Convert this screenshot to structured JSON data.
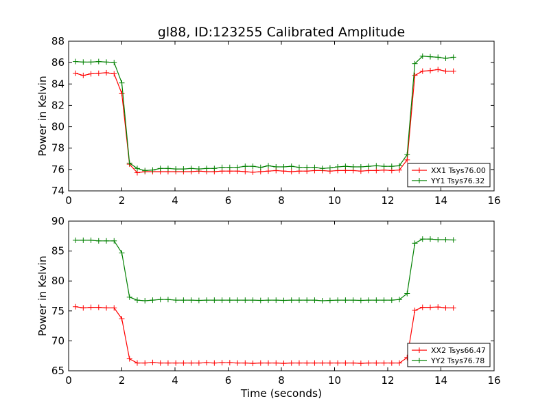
{
  "figure_title": "gl88, ID:123255 Calibrated Amplitude",
  "chart_data": [
    {
      "type": "line",
      "title": "gl88, ID:123255 Calibrated Amplitude",
      "xlabel": "",
      "ylabel": "Power in Kelvin",
      "xlim": [
        0,
        16
      ],
      "ylim": [
        74,
        88
      ],
      "xticks": [
        "0",
        "2",
        "4",
        "6",
        "8",
        "10",
        "12",
        "14",
        "16"
      ],
      "yticks": [
        "74",
        "76",
        "78",
        "80",
        "82",
        "84",
        "86",
        "88"
      ],
      "grid": false,
      "legend_position": "lower-right",
      "series": [
        {
          "name": "XX1 Tsys76.00",
          "color": "#ff0000",
          "x": [
            0.26,
            0.55,
            0.84,
            1.13,
            1.42,
            1.71,
            2.0,
            2.29,
            2.58,
            2.87,
            3.16,
            3.45,
            3.74,
            4.03,
            4.32,
            4.61,
            4.9,
            5.19,
            5.48,
            5.77,
            6.06,
            6.35,
            6.64,
            6.93,
            7.22,
            7.51,
            7.8,
            8.09,
            8.38,
            8.67,
            8.96,
            9.25,
            9.54,
            9.83,
            10.12,
            10.41,
            10.7,
            10.99,
            11.28,
            11.57,
            11.86,
            12.15,
            12.44,
            12.73,
            13.02,
            13.31,
            13.6,
            13.89,
            14.18,
            14.47
          ],
          "y": [
            85.0,
            84.8,
            84.95,
            85.0,
            85.05,
            84.95,
            83.1,
            76.5,
            75.7,
            75.8,
            75.8,
            75.8,
            75.8,
            75.8,
            75.8,
            75.8,
            75.85,
            75.8,
            75.8,
            75.85,
            75.85,
            75.85,
            75.8,
            75.75,
            75.8,
            75.85,
            75.9,
            75.85,
            75.8,
            75.85,
            75.85,
            75.9,
            75.9,
            75.85,
            75.9,
            75.9,
            75.9,
            75.85,
            75.9,
            75.9,
            75.95,
            75.9,
            75.95,
            76.9,
            84.8,
            85.2,
            85.25,
            85.35,
            85.2,
            85.2
          ]
        },
        {
          "name": "YY1 Tsys76.32",
          "color": "#008000",
          "x": [
            0.26,
            0.55,
            0.84,
            1.13,
            1.42,
            1.71,
            2.0,
            2.29,
            2.58,
            2.87,
            3.16,
            3.45,
            3.74,
            4.03,
            4.32,
            4.61,
            4.9,
            5.19,
            5.48,
            5.77,
            6.06,
            6.35,
            6.64,
            6.93,
            7.22,
            7.51,
            7.8,
            8.09,
            8.38,
            8.67,
            8.96,
            9.25,
            9.54,
            9.83,
            10.12,
            10.41,
            10.7,
            10.99,
            11.28,
            11.57,
            11.86,
            12.15,
            12.44,
            12.73,
            13.02,
            13.31,
            13.6,
            13.89,
            14.18,
            14.47
          ],
          "y": [
            86.1,
            86.05,
            86.05,
            86.1,
            86.05,
            86.0,
            84.1,
            76.6,
            76.1,
            75.9,
            75.95,
            76.1,
            76.1,
            76.05,
            76.05,
            76.1,
            76.05,
            76.1,
            76.1,
            76.2,
            76.2,
            76.2,
            76.3,
            76.3,
            76.2,
            76.35,
            76.25,
            76.25,
            76.3,
            76.2,
            76.2,
            76.2,
            76.1,
            76.15,
            76.25,
            76.3,
            76.25,
            76.25,
            76.3,
            76.35,
            76.3,
            76.3,
            76.35,
            77.4,
            85.9,
            86.6,
            86.55,
            86.5,
            86.4,
            86.5
          ]
        }
      ]
    },
    {
      "type": "line",
      "title": "",
      "xlabel": "Time (seconds)",
      "ylabel": "Power in Kelvin",
      "xlim": [
        0,
        16
      ],
      "ylim": [
        65,
        90
      ],
      "xticks": [
        "0",
        "2",
        "4",
        "6",
        "8",
        "10",
        "12",
        "14",
        "16"
      ],
      "yticks": [
        "65",
        "70",
        "75",
        "80",
        "85",
        "90"
      ],
      "grid": false,
      "legend_position": "lower-right",
      "series": [
        {
          "name": "XX2 Tsys66.47",
          "color": "#ff0000",
          "x": [
            0.26,
            0.55,
            0.84,
            1.13,
            1.42,
            1.71,
            2.0,
            2.29,
            2.58,
            2.87,
            3.16,
            3.45,
            3.74,
            4.03,
            4.32,
            4.61,
            4.9,
            5.19,
            5.48,
            5.77,
            6.06,
            6.35,
            6.64,
            6.93,
            7.22,
            7.51,
            7.8,
            8.09,
            8.38,
            8.67,
            8.96,
            9.25,
            9.54,
            9.83,
            10.12,
            10.41,
            10.7,
            10.99,
            11.28,
            11.57,
            11.86,
            12.15,
            12.44,
            12.73,
            13.02,
            13.31,
            13.6,
            13.89,
            14.18,
            14.47
          ],
          "y": [
            75.7,
            75.5,
            75.6,
            75.6,
            75.5,
            75.5,
            73.7,
            67.0,
            66.3,
            66.3,
            66.4,
            66.3,
            66.3,
            66.3,
            66.3,
            66.3,
            66.3,
            66.35,
            66.3,
            66.35,
            66.35,
            66.3,
            66.3,
            66.25,
            66.3,
            66.3,
            66.3,
            66.25,
            66.3,
            66.3,
            66.3,
            66.3,
            66.3,
            66.3,
            66.3,
            66.3,
            66.3,
            66.25,
            66.3,
            66.3,
            66.3,
            66.3,
            66.3,
            67.2,
            75.1,
            75.6,
            75.6,
            75.65,
            75.5,
            75.5
          ]
        },
        {
          "name": "YY2 Tsys76.78",
          "color": "#008000",
          "x": [
            0.26,
            0.55,
            0.84,
            1.13,
            1.42,
            1.71,
            2.0,
            2.29,
            2.58,
            2.87,
            3.16,
            3.45,
            3.74,
            4.03,
            4.32,
            4.61,
            4.9,
            5.19,
            5.48,
            5.77,
            6.06,
            6.35,
            6.64,
            6.93,
            7.22,
            7.51,
            7.8,
            8.09,
            8.38,
            8.67,
            8.96,
            9.25,
            9.54,
            9.83,
            10.12,
            10.41,
            10.7,
            10.99,
            11.28,
            11.57,
            11.86,
            12.15,
            12.44,
            12.73,
            13.02,
            13.31,
            13.6,
            13.89,
            14.18,
            14.47
          ],
          "y": [
            86.8,
            86.8,
            86.8,
            86.7,
            86.7,
            86.7,
            84.7,
            77.3,
            76.8,
            76.7,
            76.8,
            76.9,
            76.9,
            76.8,
            76.8,
            76.8,
            76.75,
            76.8,
            76.8,
            76.8,
            76.8,
            76.8,
            76.8,
            76.8,
            76.75,
            76.8,
            76.8,
            76.75,
            76.8,
            76.8,
            76.8,
            76.8,
            76.7,
            76.75,
            76.8,
            76.8,
            76.8,
            76.75,
            76.8,
            76.8,
            76.8,
            76.8,
            76.9,
            77.9,
            86.3,
            87.0,
            87.0,
            86.9,
            86.9,
            86.85
          ]
        }
      ]
    }
  ]
}
